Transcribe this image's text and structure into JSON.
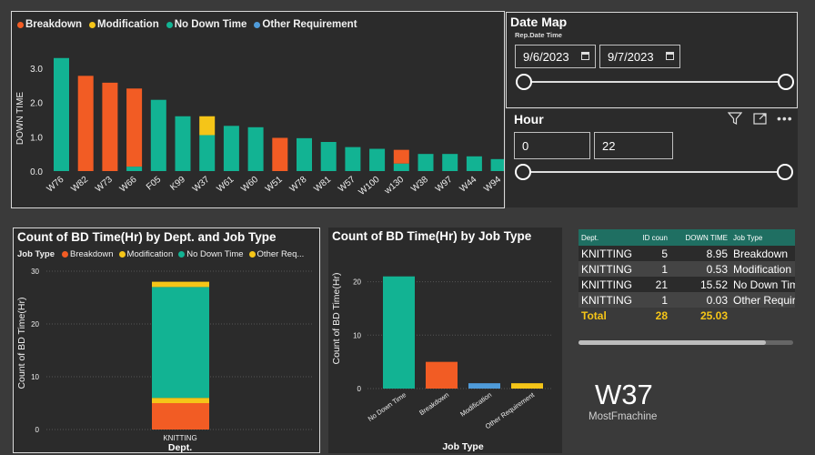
{
  "legend_top": [
    {
      "label": "Breakdown",
      "color": "#f25c24"
    },
    {
      "label": "Modification",
      "color": "#f5c518"
    },
    {
      "label": "No Down Time",
      "color": "#12b393"
    },
    {
      "label": "Other Requirement",
      "color": "#4f9bd9"
    }
  ],
  "chart_data": [
    {
      "type": "bar",
      "ylabel": "DOWN TIME",
      "yticks": [
        "0.0",
        "1.0",
        "2.0",
        "3.0"
      ],
      "ylim": [
        0,
        3.4
      ],
      "categories": [
        "W76",
        "W82",
        "W73",
        "W66",
        "F05",
        "K99",
        "W37",
        "W61",
        "W60",
        "W51",
        "W78",
        "W81",
        "W57",
        "W100",
        "w130",
        "W38",
        "W97",
        "W44",
        "W94"
      ],
      "series": [
        {
          "name": "No Down Time",
          "color": "#12b393",
          "values": [
            3.3,
            0,
            0,
            0.13,
            2.08,
            1.6,
            1.05,
            1.32,
            1.28,
            0,
            0.96,
            0.85,
            0.7,
            0.65,
            0.22,
            0.5,
            0.5,
            0.43,
            0.35
          ]
        },
        {
          "name": "Breakdown",
          "color": "#f25c24",
          "values": [
            0,
            2.78,
            2.58,
            2.28,
            0,
            0,
            0,
            0,
            0,
            0.97,
            0,
            0,
            0,
            0,
            0.4,
            0,
            0,
            0,
            0
          ]
        },
        {
          "name": "Modification",
          "color": "#f5c518",
          "values": [
            0,
            0,
            0,
            0,
            0,
            0,
            0.55,
            0,
            0,
            0,
            0,
            0,
            0,
            0,
            0,
            0,
            0,
            0,
            0
          ]
        }
      ]
    },
    {
      "type": "bar",
      "title": "Count of BD Time(Hr) by Dept. and Job Type",
      "xlabel": "Dept.",
      "ylabel": "Count of BD Time(Hr)",
      "yticks": [
        "0",
        "10",
        "20",
        "30"
      ],
      "ylim": [
        0,
        30
      ],
      "categories": [
        "KNITTING"
      ],
      "series": [
        {
          "name": "Breakdown",
          "color": "#f25c24",
          "values": [
            5
          ]
        },
        {
          "name": "Modification",
          "color": "#f5c518",
          "values": [
            1
          ]
        },
        {
          "name": "No Down Time",
          "color": "#12b393",
          "values": [
            21
          ]
        },
        {
          "name": "Other Req...",
          "color": "#f5c518",
          "values": [
            1
          ]
        }
      ]
    },
    {
      "type": "bar",
      "title": "Count of BD Time(Hr) by Job Type",
      "xlabel": "Job Type",
      "ylabel": "Count of BD Time(Hr)",
      "yticks": [
        "0",
        "10",
        "20"
      ],
      "ylim": [
        0,
        23
      ],
      "categories": [
        "No Down Time",
        "Breakdown",
        "Modification",
        "Other Requirement"
      ],
      "values": [
        21,
        5,
        1,
        1
      ],
      "colors": [
        "#12b393",
        "#f25c24",
        "#4f9bd9",
        "#f5c518"
      ]
    }
  ],
  "legend_mid": {
    "prefix": "Job Type",
    "items": [
      {
        "label": "Breakdown",
        "color": "#f25c24"
      },
      {
        "label": "Modification",
        "color": "#f5c518"
      },
      {
        "label": "No Down Time",
        "color": "#12b393"
      },
      {
        "label": "Other Req...",
        "color": "#f5c518"
      }
    ]
  },
  "date_map": {
    "title": "Date Map",
    "field_label": "Rep.Date Time",
    "start": "9/6/2023",
    "end": "9/7/2023"
  },
  "hour": {
    "title": "Hour",
    "min": "0",
    "max": "22"
  },
  "table": {
    "headers": [
      "Dept.",
      "ID coun",
      "DOWN TIME",
      "Job Type"
    ],
    "rows": [
      [
        "KNITTING",
        "5",
        "8.95",
        "Breakdown"
      ],
      [
        "KNITTING",
        "1",
        "0.53",
        "Modification"
      ],
      [
        "KNITTING",
        "21",
        "15.52",
        "No Down Time"
      ],
      [
        "KNITTING",
        "1",
        "0.03",
        "Other Requirement"
      ]
    ],
    "total": [
      "Total",
      "28",
      "25.03",
      ""
    ]
  },
  "card": {
    "value": "W37",
    "label": "MostFmachine"
  }
}
